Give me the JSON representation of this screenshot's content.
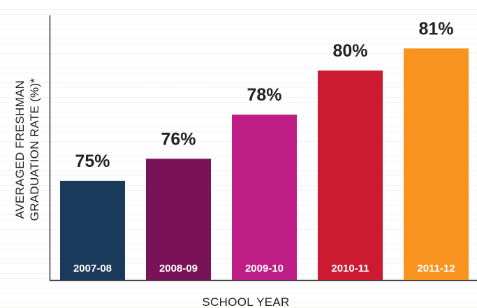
{
  "chart_data": {
    "type": "bar",
    "categories": [
      "2007-08",
      "2008-09",
      "2009-10",
      "2010-11",
      "2011-12"
    ],
    "values": [
      75,
      76,
      78,
      80,
      81
    ],
    "value_labels": [
      "75%",
      "76%",
      "78%",
      "80%",
      "81%"
    ],
    "colors": [
      "#1a3a5c",
      "#7a1258",
      "#be1d86",
      "#cc1a30",
      "#f7931e"
    ],
    "xlabel": "SCHOOL YEAR",
    "ylabel_lines": [
      "AVERAGED FRESHMAN",
      "GRADUATION RATE (%)*"
    ],
    "ylim": [
      70.5,
      82.5
    ],
    "grid": false,
    "legend": "none"
  }
}
